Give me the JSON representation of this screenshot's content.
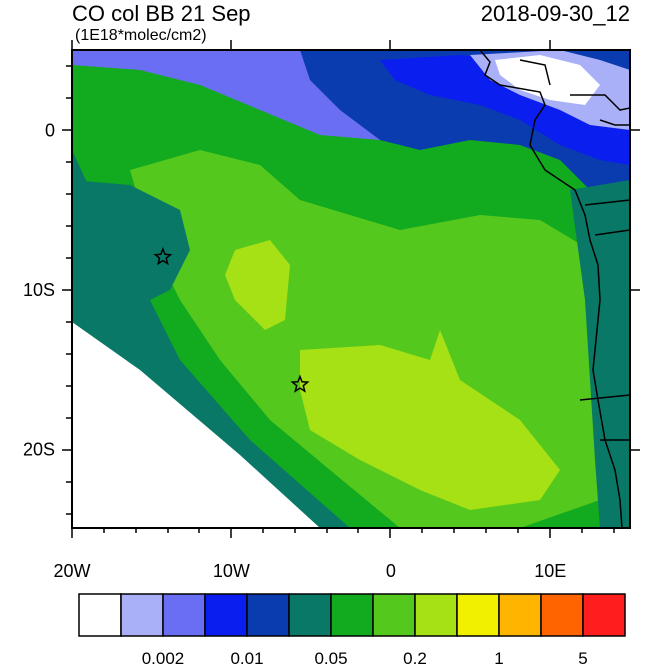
{
  "map": {
    "title": "CO col BB 21 Sep",
    "units": "(1E18*molec/cm2)",
    "datetime": "2018-09-30_12",
    "lon_range": [
      -20,
      15
    ],
    "lat_range": [
      -25,
      5
    ],
    "x_ticks": [
      {
        "value": -20,
        "label": "20W"
      },
      {
        "value": -10,
        "label": "10W"
      },
      {
        "value": 0,
        "label": "0"
      },
      {
        "value": 10,
        "label": "10E"
      }
    ],
    "y_ticks": [
      {
        "value": 0,
        "label": "0"
      },
      {
        "value": -10,
        "label": "10S"
      },
      {
        "value": -20,
        "label": "20S"
      }
    ],
    "markers": [
      {
        "name": "star",
        "lon": -14.3,
        "lat": -8.0
      },
      {
        "name": "star",
        "lon": -5.7,
        "lat": -16.0
      }
    ]
  },
  "colorbar": {
    "colors": [
      "#ffffff",
      "#aab0f8",
      "#6a6ef3",
      "#0a1ef0",
      "#0a3cb0",
      "#0a7866",
      "#12aa1e",
      "#55c81e",
      "#a5e114",
      "#f0f000",
      "#ffb400",
      "#ff6400",
      "#ff1e1e"
    ],
    "labels": [
      "0.002",
      "0.01",
      "0.05",
      "0.2",
      "1",
      "5"
    ],
    "label_after_box": [
      2,
      4,
      6,
      8,
      10,
      12
    ]
  }
}
